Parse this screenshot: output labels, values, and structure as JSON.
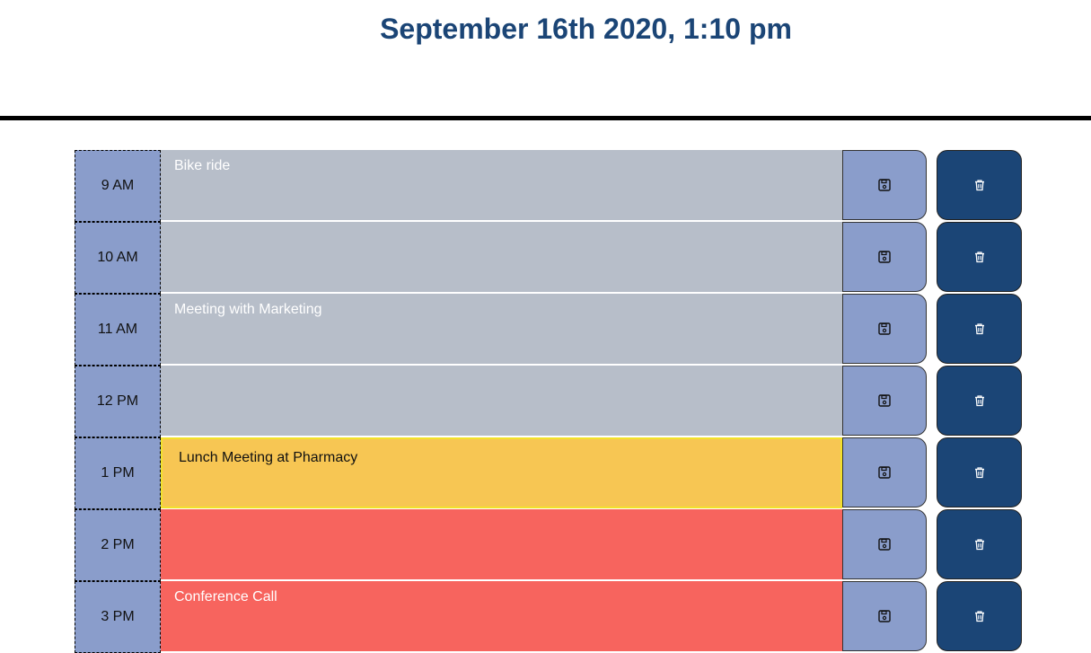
{
  "header": {
    "current_day": "September 16th 2020, 1:10 pm"
  },
  "colors": {
    "past": "#b7bec9",
    "present": "#f7c653",
    "future": "#f7645e",
    "hour_bg": "#8a9dcb",
    "delete_bg": "#1b4576",
    "title": "#1b4576"
  },
  "icons": {
    "save": "save-icon",
    "delete": "trash-icon"
  },
  "timeblocks": [
    {
      "hour": "9 AM",
      "text": "Bike ride",
      "state": "past"
    },
    {
      "hour": "10 AM",
      "text": "",
      "state": "past"
    },
    {
      "hour": "11 AM",
      "text": "Meeting with Marketing",
      "state": "past"
    },
    {
      "hour": "12 PM",
      "text": "",
      "state": "past"
    },
    {
      "hour": "1 PM",
      "text": "Lunch Meeting at Pharmacy",
      "state": "present"
    },
    {
      "hour": "2 PM",
      "text": "",
      "state": "future"
    },
    {
      "hour": "3 PM",
      "text": "Conference Call",
      "state": "future"
    }
  ]
}
